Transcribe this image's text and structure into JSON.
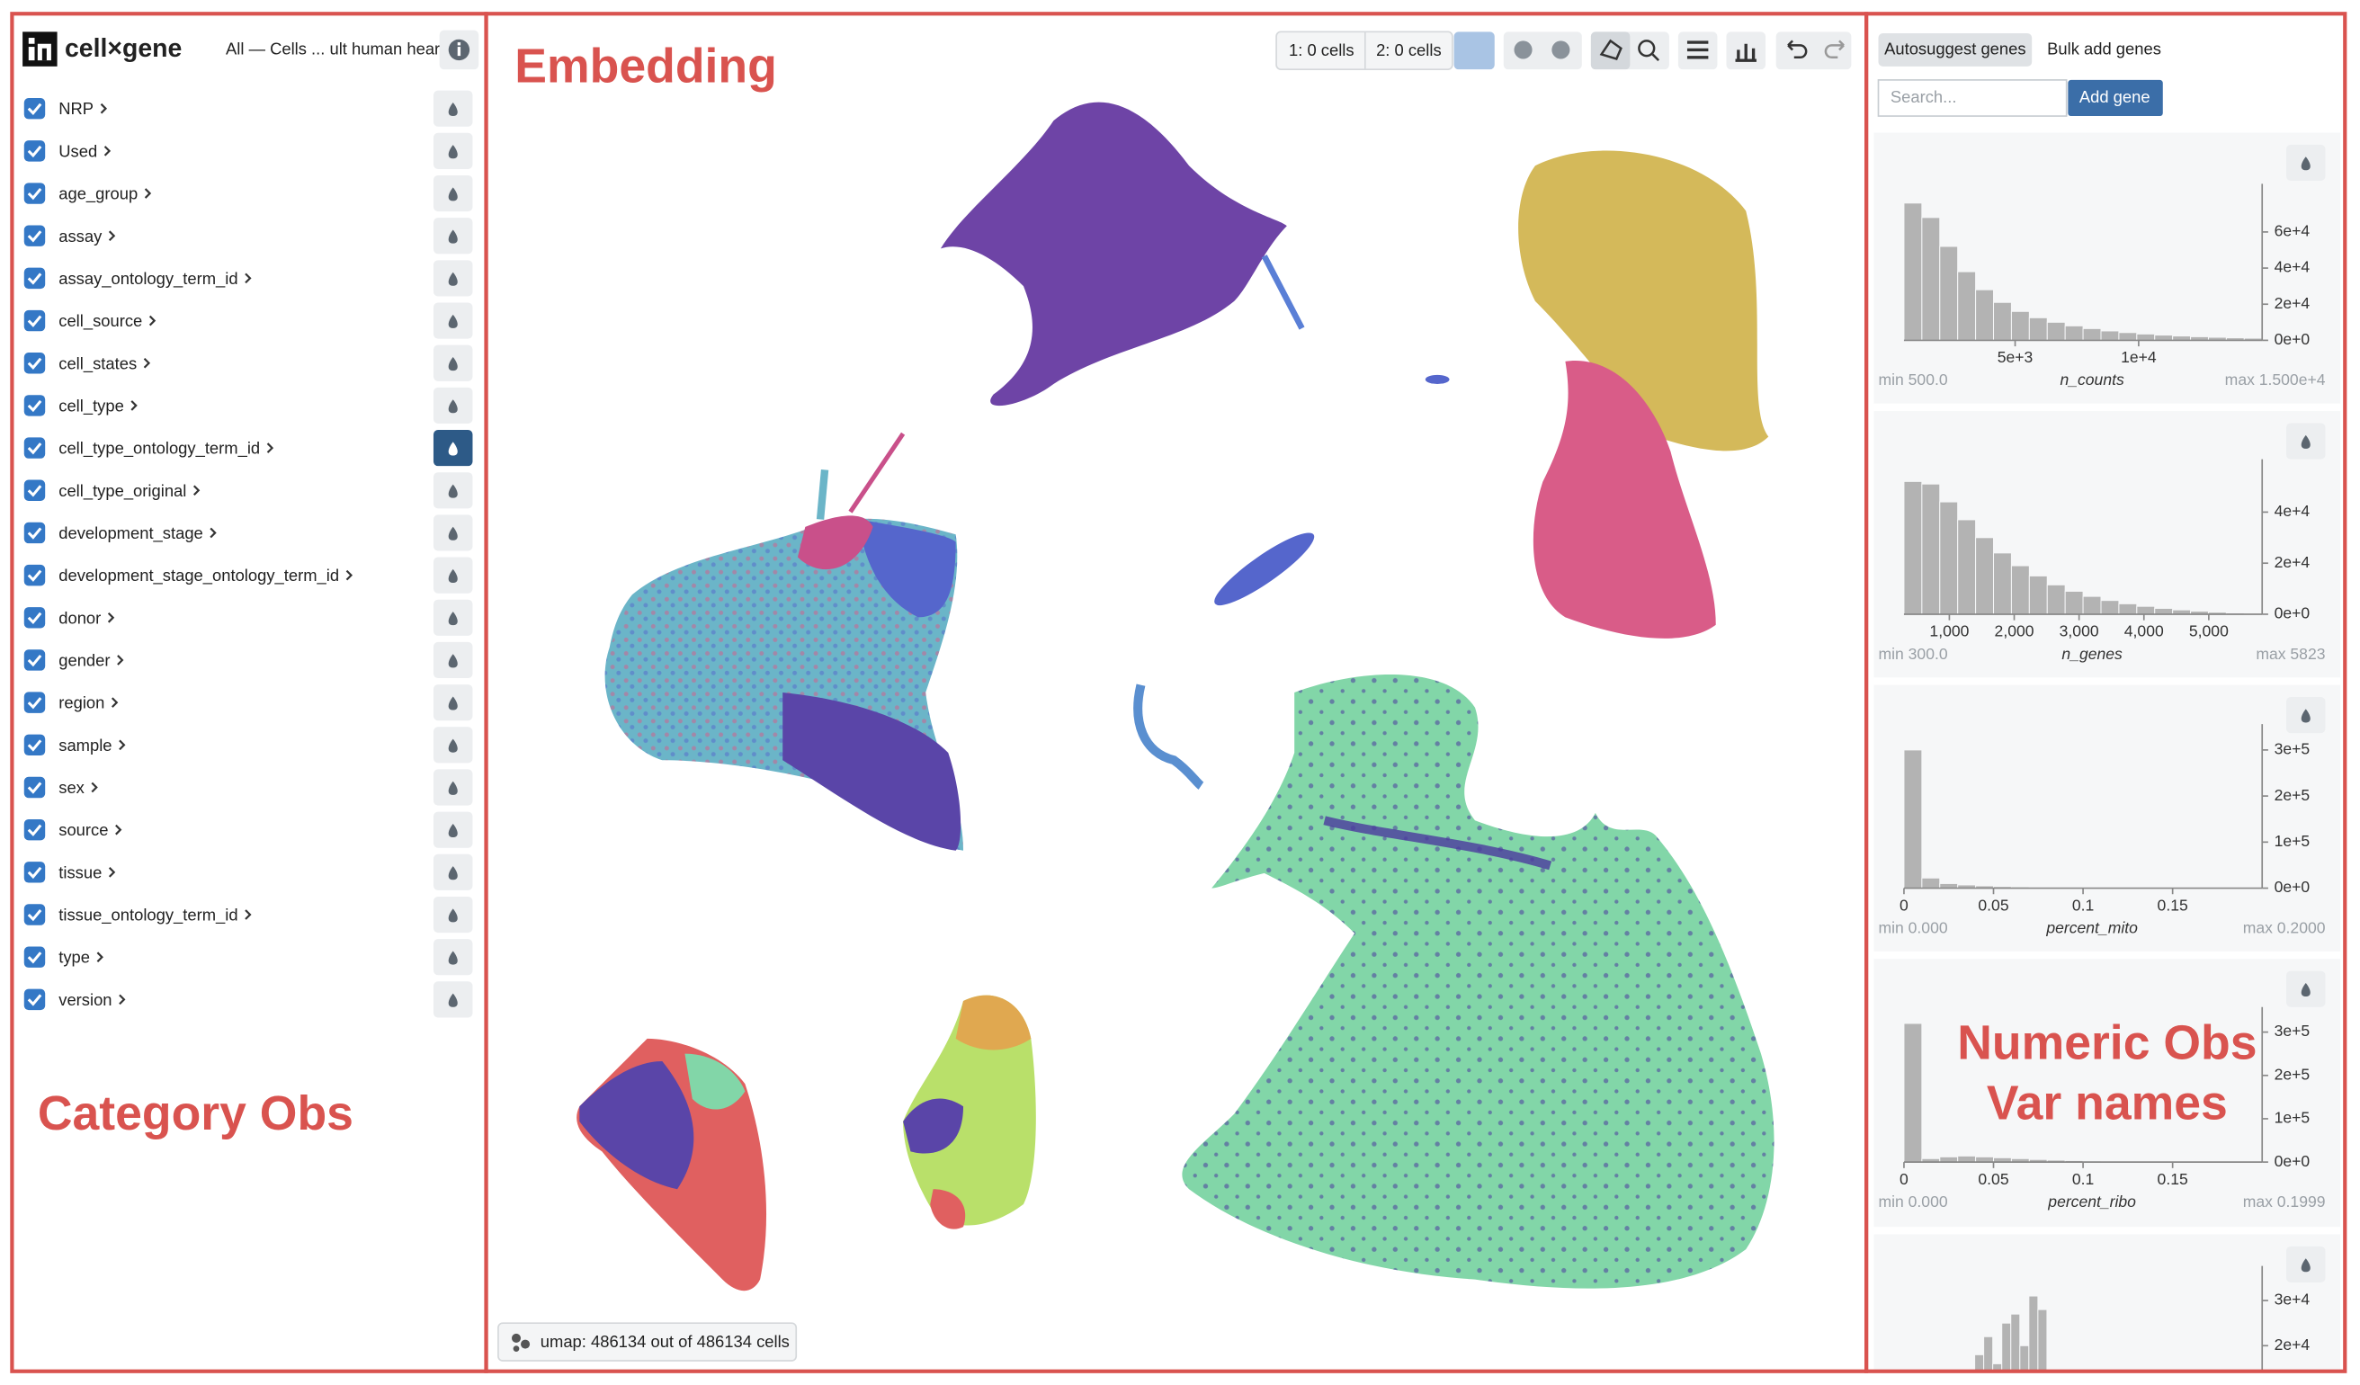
{
  "header": {
    "logo": "cell×gene",
    "dataset": "All — Cells ... ult human heart"
  },
  "categories": [
    "NRP",
    "Used",
    "age_group",
    "assay",
    "assay_ontology_term_id",
    "cell_source",
    "cell_states",
    "cell_type",
    "cell_type_ontology_term_id",
    "cell_type_original",
    "development_stage",
    "development_stage_ontology_term_id",
    "donor",
    "gender",
    "region",
    "sample",
    "sex",
    "source",
    "tissue",
    "tissue_ontology_term_id",
    "type",
    "version"
  ],
  "toolbar": {
    "selection_1": "1: 0 cells",
    "selection_2": "2: 0 cells"
  },
  "embedding_status": "umap: 486134 out of 486134 cells",
  "gene_panel": {
    "tabs": [
      "Autosuggest genes",
      "Bulk add genes"
    ],
    "search_placeholder": "Search...",
    "add_button": "Add gene"
  },
  "histograms": [
    {
      "type": "histogram",
      "name": "n_counts",
      "min_label": "min 500.0",
      "max_label": "max 1.500e+4",
      "bins": [
        500,
        1225,
        1950,
        2675,
        3400,
        4125,
        4850,
        5575,
        6300,
        7025,
        7750,
        8475,
        9200,
        9925,
        10650,
        11375,
        12100,
        12825,
        13550,
        14275,
        15000
      ],
      "values": [
        76000,
        68000,
        52000,
        38000,
        28000,
        21000,
        16000,
        12500,
        10000,
        8000,
        6500,
        5200,
        4300,
        3500,
        2900,
        2400,
        2000,
        1700,
        1400,
        1200
      ],
      "xlim": [
        500,
        15000
      ],
      "xticks": [
        {
          "value": 5000,
          "label": "5e+3"
        },
        {
          "value": 10000,
          "label": "1e+4"
        }
      ],
      "ylim": [
        0,
        80000
      ],
      "yticks": [
        {
          "value": 0,
          "label": "0e+0"
        },
        {
          "value": 20000,
          "label": "2e+4"
        },
        {
          "value": 40000,
          "label": "4e+4"
        },
        {
          "value": 60000,
          "label": "6e+4"
        }
      ]
    },
    {
      "type": "histogram",
      "name": "n_genes",
      "min_label": "min 300.0",
      "max_label": "max 5823",
      "bins": [
        300,
        576.15,
        852.3,
        1128.45,
        1404.6,
        1680.75,
        1956.9,
        2233.05,
        2509.2,
        2785.35,
        3061.5,
        3337.65,
        3613.8,
        3889.95,
        4166.1,
        4442.25,
        4718.4,
        4994.55,
        5270.7,
        5546.85,
        5823
      ],
      "values": [
        52000,
        51000,
        44000,
        37000,
        30000,
        24000,
        19000,
        15000,
        11500,
        9000,
        7000,
        5400,
        4100,
        3100,
        2300,
        1700,
        1200,
        800,
        500,
        300
      ],
      "xlim": [
        300,
        5823
      ],
      "xticks": [
        {
          "value": 1000,
          "label": "1,000"
        },
        {
          "value": 2000,
          "label": "2,000"
        },
        {
          "value": 3000,
          "label": "3,000"
        },
        {
          "value": 4000,
          "label": "4,000"
        },
        {
          "value": 5000,
          "label": "5,000"
        }
      ],
      "ylim": [
        0,
        56000
      ],
      "yticks": [
        {
          "value": 0,
          "label": "0e+0"
        },
        {
          "value": 20000,
          "label": "2e+4"
        },
        {
          "value": 40000,
          "label": "4e+4"
        }
      ]
    },
    {
      "type": "histogram",
      "name": "percent_mito",
      "min_label": "min 0.000",
      "max_label": "max 0.2000",
      "bins": [
        0,
        0.01,
        0.02,
        0.03,
        0.04,
        0.05,
        0.06,
        0.07,
        0.08,
        0.09,
        0.1,
        0.11,
        0.12,
        0.13,
        0.14,
        0.15,
        0.16,
        0.17,
        0.18,
        0.19,
        0.2
      ],
      "values": [
        300000,
        22000,
        10000,
        7000,
        5000,
        3500,
        2500,
        2000,
        1500,
        1200,
        1000,
        800,
        600,
        500,
        400,
        300,
        250,
        200,
        150,
        100
      ],
      "xlim": [
        0,
        0.2
      ],
      "xticks": [
        0,
        0.05,
        0.1,
        0.15
      ],
      "ylim": [
        0,
        330000
      ],
      "yticks": [
        {
          "value": 0,
          "label": "0e+0"
        },
        {
          "value": 100000,
          "label": "1e+5"
        },
        {
          "value": 200000,
          "label": "2e+5"
        },
        {
          "value": 300000,
          "label": "3e+5"
        }
      ]
    },
    {
      "type": "histogram",
      "name": "percent_ribo",
      "min_label": "min 0.000",
      "max_label": "max 0.1999",
      "bins": [
        0,
        0.01,
        0.02,
        0.03,
        0.04,
        0.05,
        0.06,
        0.07,
        0.08,
        0.09,
        0.1,
        0.11,
        0.12,
        0.13,
        0.14,
        0.15,
        0.16,
        0.17,
        0.18,
        0.19,
        0.2
      ],
      "values": [
        320000,
        8000,
        12000,
        14000,
        12000,
        10000,
        8000,
        6000,
        4500,
        3500,
        2500,
        1800,
        1200,
        800,
        600,
        400,
        300,
        200,
        100,
        50
      ],
      "xlim": [
        0,
        0.2
      ],
      "xticks": [
        0,
        0.05,
        0.1,
        0.15
      ],
      "ylim": [
        0,
        330000
      ],
      "yticks": [
        {
          "value": 0,
          "label": "0e+0"
        },
        {
          "value": 100000,
          "label": "1e+5"
        },
        {
          "value": 200000,
          "label": "2e+5"
        },
        {
          "value": 300000,
          "label": "3e+5"
        }
      ]
    },
    {
      "type": "bar",
      "values": [
        5000,
        12000,
        18000,
        22000,
        16000,
        25000,
        27000,
        20000,
        31000,
        28000,
        6000,
        1000
      ],
      "ylim": [
        0,
        35000
      ],
      "yticks": [
        {
          "value": 20000,
          "label": "2e+4"
        },
        {
          "value": 30000,
          "label": "3e+4"
        }
      ]
    }
  ],
  "annotations": {
    "category": "Category Obs",
    "embedding": "Embedding",
    "numeric": [
      "Numeric Obs",
      "Var names"
    ]
  }
}
